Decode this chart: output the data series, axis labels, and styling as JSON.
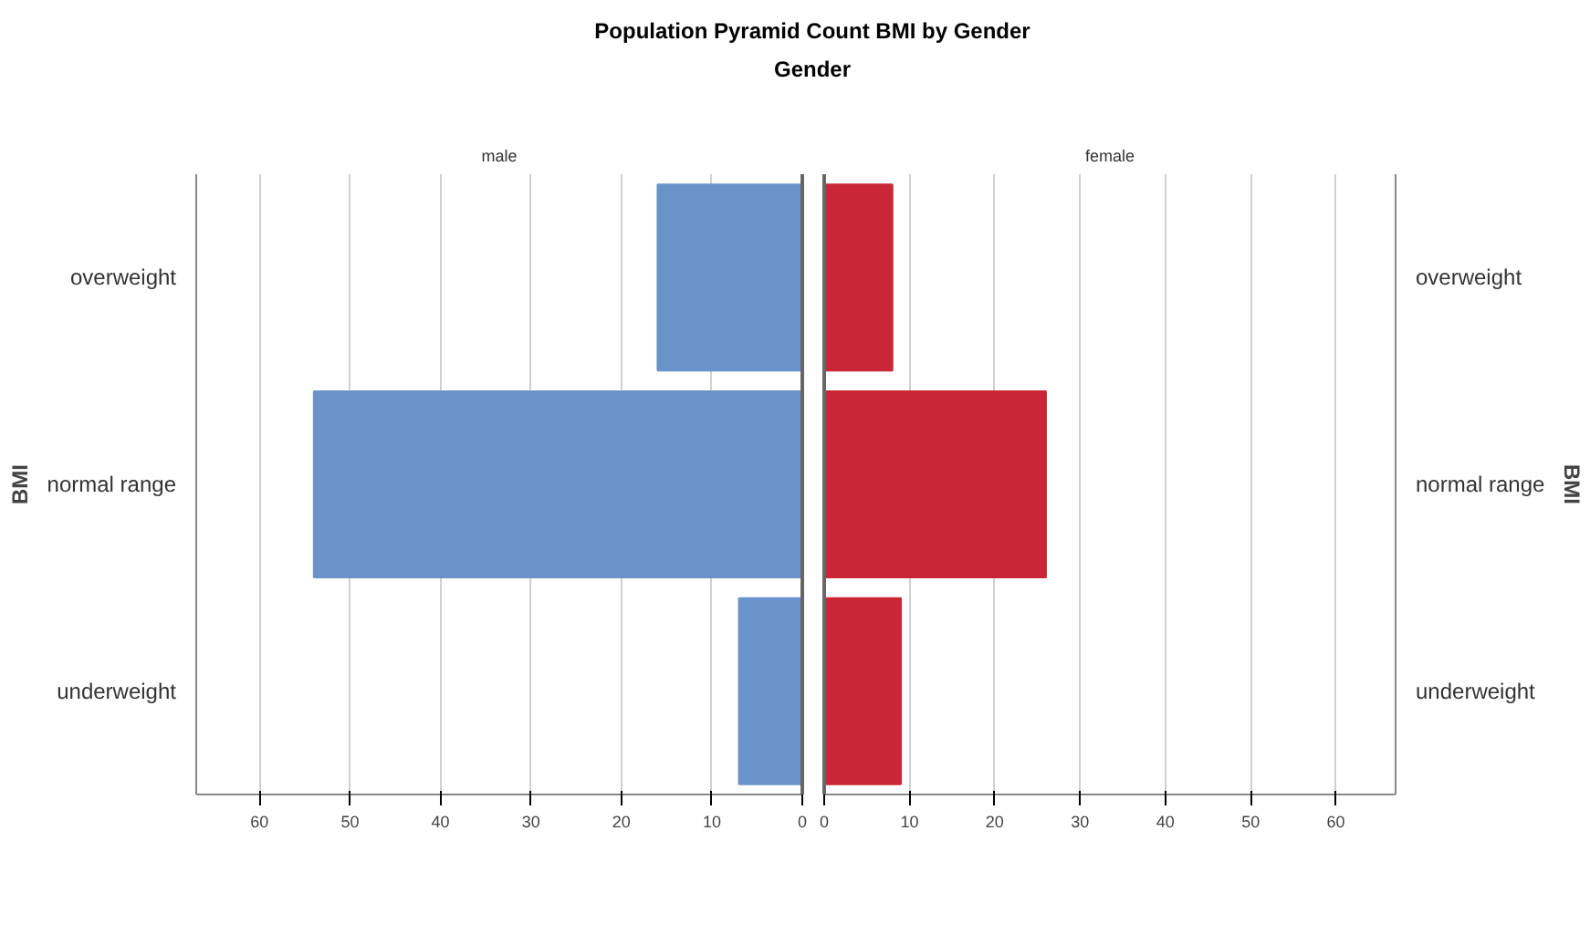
{
  "chart_data": [
    {
      "type": "bar",
      "orientation": "horizontal",
      "title": "Population Pyramid Count BMI  by Gender",
      "subtitle": "Gender",
      "ylabel": "BMI",
      "categories": [
        "overweight",
        "normal range",
        "underweight"
      ],
      "series": [
        {
          "name": "male",
          "color": "#6a93c9",
          "values": [
            16,
            54,
            7
          ]
        }
      ],
      "xlim": [
        67,
        0
      ],
      "xticks": [
        60,
        50,
        40,
        30,
        20,
        10,
        0
      ],
      "grid": "x"
    },
    {
      "type": "bar",
      "orientation": "horizontal",
      "y2label": "BMI",
      "categories": [
        "overweight",
        "normal range",
        "underweight"
      ],
      "series": [
        {
          "name": "female",
          "color": "#c92737",
          "values": [
            8,
            26,
            9
          ]
        }
      ],
      "xlim": [
        0,
        67
      ],
      "xticks": [
        0,
        10,
        20,
        30,
        40,
        50,
        60
      ],
      "grid": "x"
    }
  ]
}
